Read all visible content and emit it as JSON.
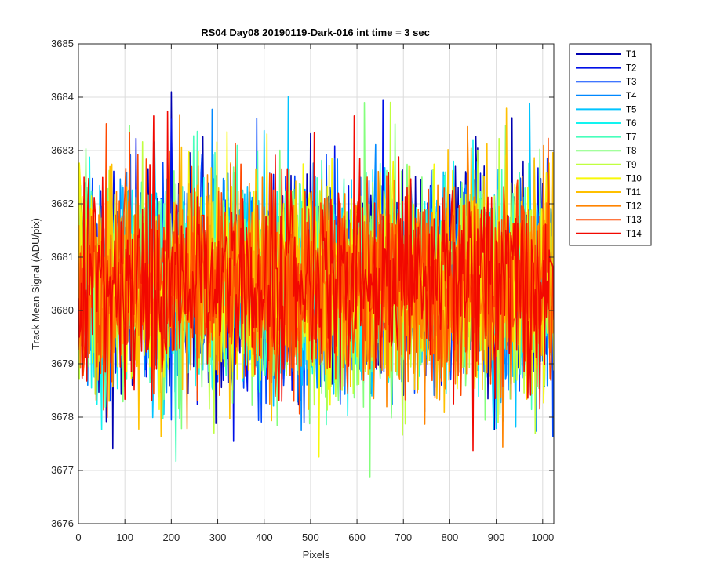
{
  "chart_data": {
    "type": "line",
    "title": "RS04 Day08 20190119-Dark-016 int time = 3 sec",
    "xlabel": "Pixels",
    "ylabel": "Track Mean Signal (ADU/pix)",
    "xlim": [
      0,
      1024
    ],
    "ylim": [
      3676,
      3685
    ],
    "xticks": [
      0,
      100,
      200,
      300,
      400,
      500,
      600,
      700,
      800,
      900,
      1000
    ],
    "yticks": [
      3676,
      3677,
      3678,
      3679,
      3680,
      3681,
      3682,
      3683,
      3684,
      3685
    ],
    "grid": true,
    "legend_position": "outside-top-right",
    "point_spacing": 2,
    "noise": {
      "mean": 3680.5,
      "stddev": 1.0,
      "min": 3676.1,
      "max": 3684.1
    },
    "series": [
      {
        "name": "T1",
        "color": "#0000B0"
      },
      {
        "name": "T2",
        "color": "#0010E8"
      },
      {
        "name": "T3",
        "color": "#0048FF"
      },
      {
        "name": "T4",
        "color": "#0088FF"
      },
      {
        "name": "T5",
        "color": "#00C4FF"
      },
      {
        "name": "T6",
        "color": "#12F4F0"
      },
      {
        "name": "T7",
        "color": "#48FFBC"
      },
      {
        "name": "T8",
        "color": "#84FF7C"
      },
      {
        "name": "T9",
        "color": "#C0FF40"
      },
      {
        "name": "T10",
        "color": "#F8F808"
      },
      {
        "name": "T11",
        "color": "#FFC000"
      },
      {
        "name": "T12",
        "color": "#FF8400"
      },
      {
        "name": "T13",
        "color": "#FF4800"
      },
      {
        "name": "T14",
        "color": "#F20800"
      }
    ]
  }
}
